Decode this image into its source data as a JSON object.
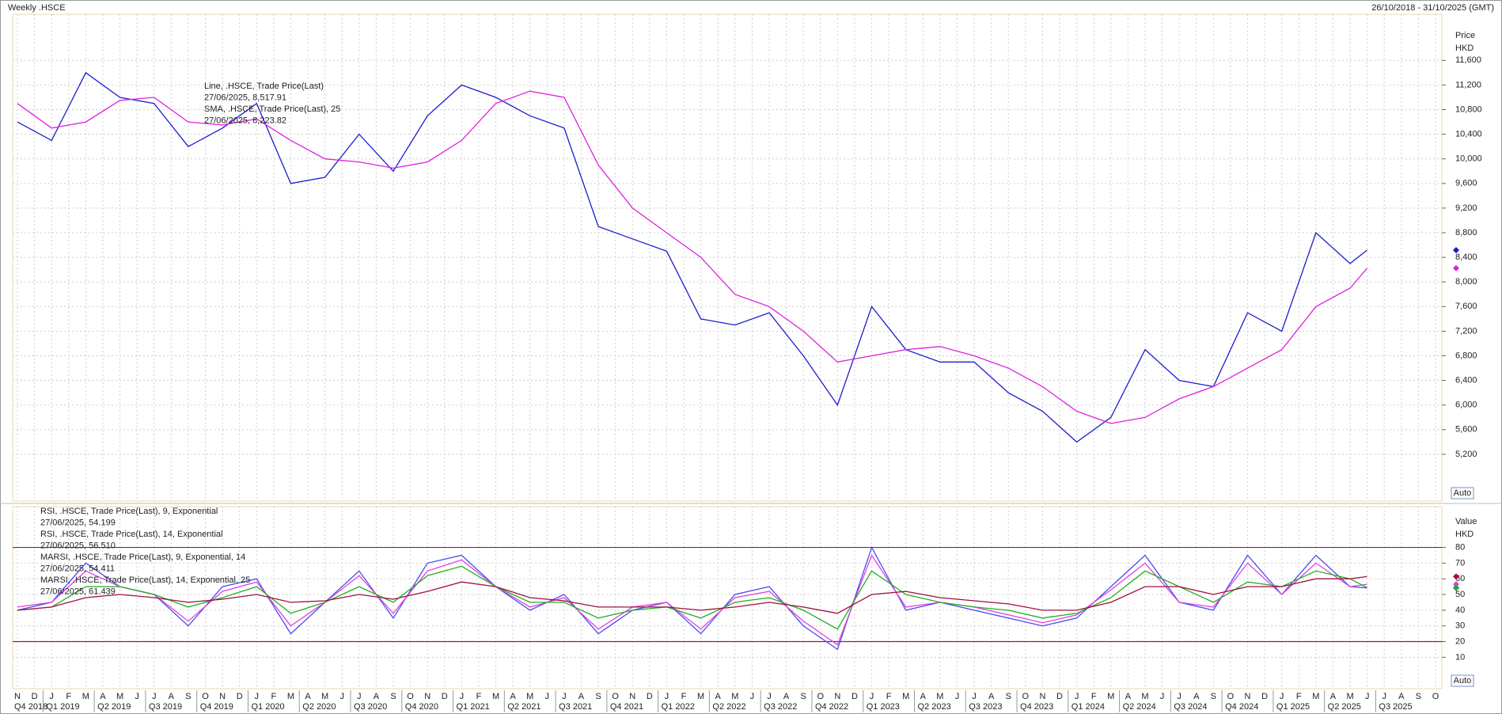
{
  "header": {
    "title": "Weekly .HSCE",
    "date_range": "26/10/2018 - 31/10/2025 (GMT)"
  },
  "time_axis": {
    "months": [
      "N",
      "D",
      "J",
      "F",
      "M",
      "A",
      "M",
      "J",
      "J",
      "A",
      "S",
      "O",
      "N",
      "D",
      "J",
      "F",
      "M",
      "A",
      "M",
      "J",
      "J",
      "A",
      "S",
      "O",
      "N",
      "D",
      "J",
      "F",
      "M",
      "A",
      "M",
      "J",
      "J",
      "A",
      "S",
      "O",
      "N",
      "D",
      "J",
      "F",
      "M",
      "A",
      "M",
      "J",
      "J",
      "A",
      "S",
      "O",
      "N",
      "D",
      "J",
      "F",
      "M",
      "A",
      "M",
      "J",
      "J",
      "A",
      "S",
      "O",
      "N",
      "D",
      "J",
      "F",
      "M",
      "A",
      "M",
      "J",
      "J",
      "A",
      "S",
      "O",
      "N",
      "D",
      "J",
      "F",
      "M",
      "A",
      "M",
      "J",
      "J",
      "A",
      "S",
      "O"
    ],
    "quarters": [
      "Q4 2018",
      "Q1 2019",
      "Q2 2019",
      "Q3 2019",
      "Q4 2019",
      "Q1 2020",
      "Q2 2020",
      "Q3 2020",
      "Q4 2020",
      "Q1 2021",
      "Q2 2021",
      "Q3 2021",
      "Q4 2021",
      "Q1 2022",
      "Q2 2022",
      "Q3 2022",
      "Q4 2022",
      "Q1 2023",
      "Q2 2023",
      "Q3 2023",
      "Q4 2023",
      "Q1 2024",
      "Q2 2024",
      "Q3 2024",
      "Q4 2024",
      "Q1 2025",
      "Q2 2025",
      "Q3 2025"
    ]
  },
  "chart_data": [
    {
      "type": "line",
      "axis_title": "Price",
      "axis_unit": "HKD",
      "scale_mode": "Auto",
      "x": [
        "2018-11",
        "2019-01",
        "2019-03",
        "2019-05",
        "2019-07",
        "2019-09",
        "2019-11",
        "2020-01",
        "2020-03",
        "2020-05",
        "2020-07",
        "2020-09",
        "2020-11",
        "2021-01",
        "2021-03",
        "2021-05",
        "2021-07",
        "2021-09",
        "2021-11",
        "2022-01",
        "2022-03",
        "2022-05",
        "2022-07",
        "2022-09",
        "2022-11",
        "2023-01",
        "2023-03",
        "2023-05",
        "2023-07",
        "2023-09",
        "2023-11",
        "2024-01",
        "2024-03",
        "2024-05",
        "2024-07",
        "2024-09",
        "2024-11",
        "2025-01",
        "2025-03",
        "2025-05",
        "2025-06"
      ],
      "series": [
        {
          "name": "Line, .HSCE, Trade Price(Last)",
          "last_label": "27/06/2025, 8,517.91",
          "color": "#1c1ccc",
          "values": [
            10600,
            10300,
            11400,
            11000,
            10900,
            10200,
            10500,
            10900,
            9600,
            9700,
            10400,
            9800,
            10700,
            11200,
            11000,
            10700,
            10500,
            8900,
            8700,
            8500,
            7400,
            7300,
            7500,
            6800,
            6000,
            7600,
            6900,
            6700,
            6700,
            6200,
            5900,
            5400,
            5800,
            6900,
            6400,
            6300,
            7500,
            7200,
            8800,
            8300,
            8517.91
          ]
        },
        {
          "name": "SMA, .HSCE, Trade Price(Last), 25",
          "last_label": "27/06/2025, 8,223.82",
          "color": "#e020e0",
          "values": [
            10900,
            10500,
            10600,
            10950,
            11000,
            10600,
            10550,
            10650,
            10300,
            10000,
            9950,
            9850,
            9950,
            10300,
            10900,
            11100,
            11000,
            9900,
            9200,
            8800,
            8400,
            7800,
            7600,
            7200,
            6700,
            6800,
            6900,
            6950,
            6800,
            6600,
            6300,
            5900,
            5700,
            5800,
            6100,
            6300,
            6600,
            6900,
            7600,
            7900,
            8223.82
          ]
        }
      ],
      "ylim": [
        4440,
        12350
      ],
      "yticks": [
        {
          "value": 5200,
          "label": "5,200"
        },
        {
          "value": 5600,
          "label": "5,600"
        },
        {
          "value": 6000,
          "label": "6,000"
        },
        {
          "value": 6400,
          "label": "6,400"
        },
        {
          "value": 6800,
          "label": "6,800"
        },
        {
          "value": 7200,
          "label": "7,200"
        },
        {
          "value": 7600,
          "label": "7,600"
        },
        {
          "value": 8000,
          "label": "8,000"
        },
        {
          "value": 8400,
          "label": "8,400"
        },
        {
          "value": 8800,
          "label": "8,800"
        },
        {
          "value": 9200,
          "label": "9,200"
        },
        {
          "value": 9600,
          "label": "9,600"
        },
        {
          "value": 10000,
          "label": "10,000"
        },
        {
          "value": 10400,
          "label": "10,400"
        },
        {
          "value": 10800,
          "label": "10,800"
        },
        {
          "value": 11200,
          "label": "11,200"
        },
        {
          "value": 11600,
          "label": "11,600"
        }
      ],
      "grid": true
    },
    {
      "type": "line",
      "axis_title": "Value",
      "axis_unit": "HKD",
      "scale_mode": "Auto",
      "x": [
        "2018-11",
        "2019-01",
        "2019-03",
        "2019-05",
        "2019-07",
        "2019-09",
        "2019-11",
        "2020-01",
        "2020-03",
        "2020-05",
        "2020-07",
        "2020-09",
        "2020-11",
        "2021-01",
        "2021-03",
        "2021-05",
        "2021-07",
        "2021-09",
        "2021-11",
        "2022-01",
        "2022-03",
        "2022-05",
        "2022-07",
        "2022-09",
        "2022-11",
        "2023-01",
        "2023-03",
        "2023-05",
        "2023-07",
        "2023-09",
        "2023-11",
        "2024-01",
        "2024-03",
        "2024-05",
        "2024-07",
        "2024-09",
        "2024-11",
        "2025-01",
        "2025-03",
        "2025-05",
        "2025-06"
      ],
      "series": [
        {
          "name": "RSI, .HSCE, Trade Price(Last), 9, Exponential",
          "last_label": "27/06/2025, 54.199",
          "color": "#4a4af0",
          "values": [
            40,
            45,
            70,
            55,
            50,
            30,
            55,
            60,
            25,
            45,
            65,
            35,
            70,
            75,
            55,
            40,
            50,
            25,
            40,
            45,
            25,
            50,
            55,
            30,
            15,
            80,
            40,
            45,
            40,
            35,
            30,
            35,
            55,
            75,
            45,
            40,
            75,
            50,
            75,
            55,
            54.199
          ]
        },
        {
          "name": "RSI, .HSCE, Trade Price(Last), 14, Exponential",
          "last_label": "27/06/2025, 56.510",
          "color": "#e040e0",
          "values": [
            42,
            45,
            65,
            55,
            50,
            33,
            52,
            58,
            30,
            45,
            62,
            38,
            65,
            72,
            55,
            42,
            48,
            28,
            42,
            45,
            28,
            48,
            52,
            33,
            18,
            75,
            42,
            45,
            42,
            37,
            32,
            37,
            53,
            70,
            45,
            42,
            70,
            50,
            70,
            55,
            56.51
          ]
        },
        {
          "name": "MARSI, .HSCE, Trade Price(Last), 9, Exponential, 14",
          "last_label": "27/06/2025, 54.411",
          "color": "#20b020",
          "values": [
            40,
            42,
            55,
            55,
            50,
            42,
            48,
            55,
            38,
            45,
            55,
            45,
            62,
            68,
            55,
            45,
            45,
            35,
            40,
            42,
            35,
            45,
            48,
            40,
            28,
            65,
            50,
            45,
            42,
            40,
            35,
            38,
            48,
            65,
            55,
            45,
            58,
            55,
            65,
            60,
            54.411
          ]
        },
        {
          "name": "MARSI, .HSCE, Trade Price(Last), 14, Exponential, 25",
          "last_label": "27/06/2025, 61.439",
          "color": "#a01040",
          "values": [
            40,
            42,
            48,
            50,
            48,
            45,
            47,
            50,
            45,
            46,
            50,
            47,
            52,
            58,
            55,
            48,
            46,
            42,
            42,
            42,
            40,
            42,
            45,
            42,
            38,
            50,
            52,
            48,
            46,
            44,
            40,
            40,
            45,
            55,
            55,
            50,
            55,
            55,
            60,
            60,
            61.439
          ]
        }
      ],
      "ref_lines": [
        20,
        80
      ],
      "ref_color": "#a01050",
      "ylim": [
        -10,
        106
      ],
      "yticks": [
        10,
        20,
        30,
        40,
        50,
        60,
        70,
        80
      ],
      "grid": true
    }
  ]
}
